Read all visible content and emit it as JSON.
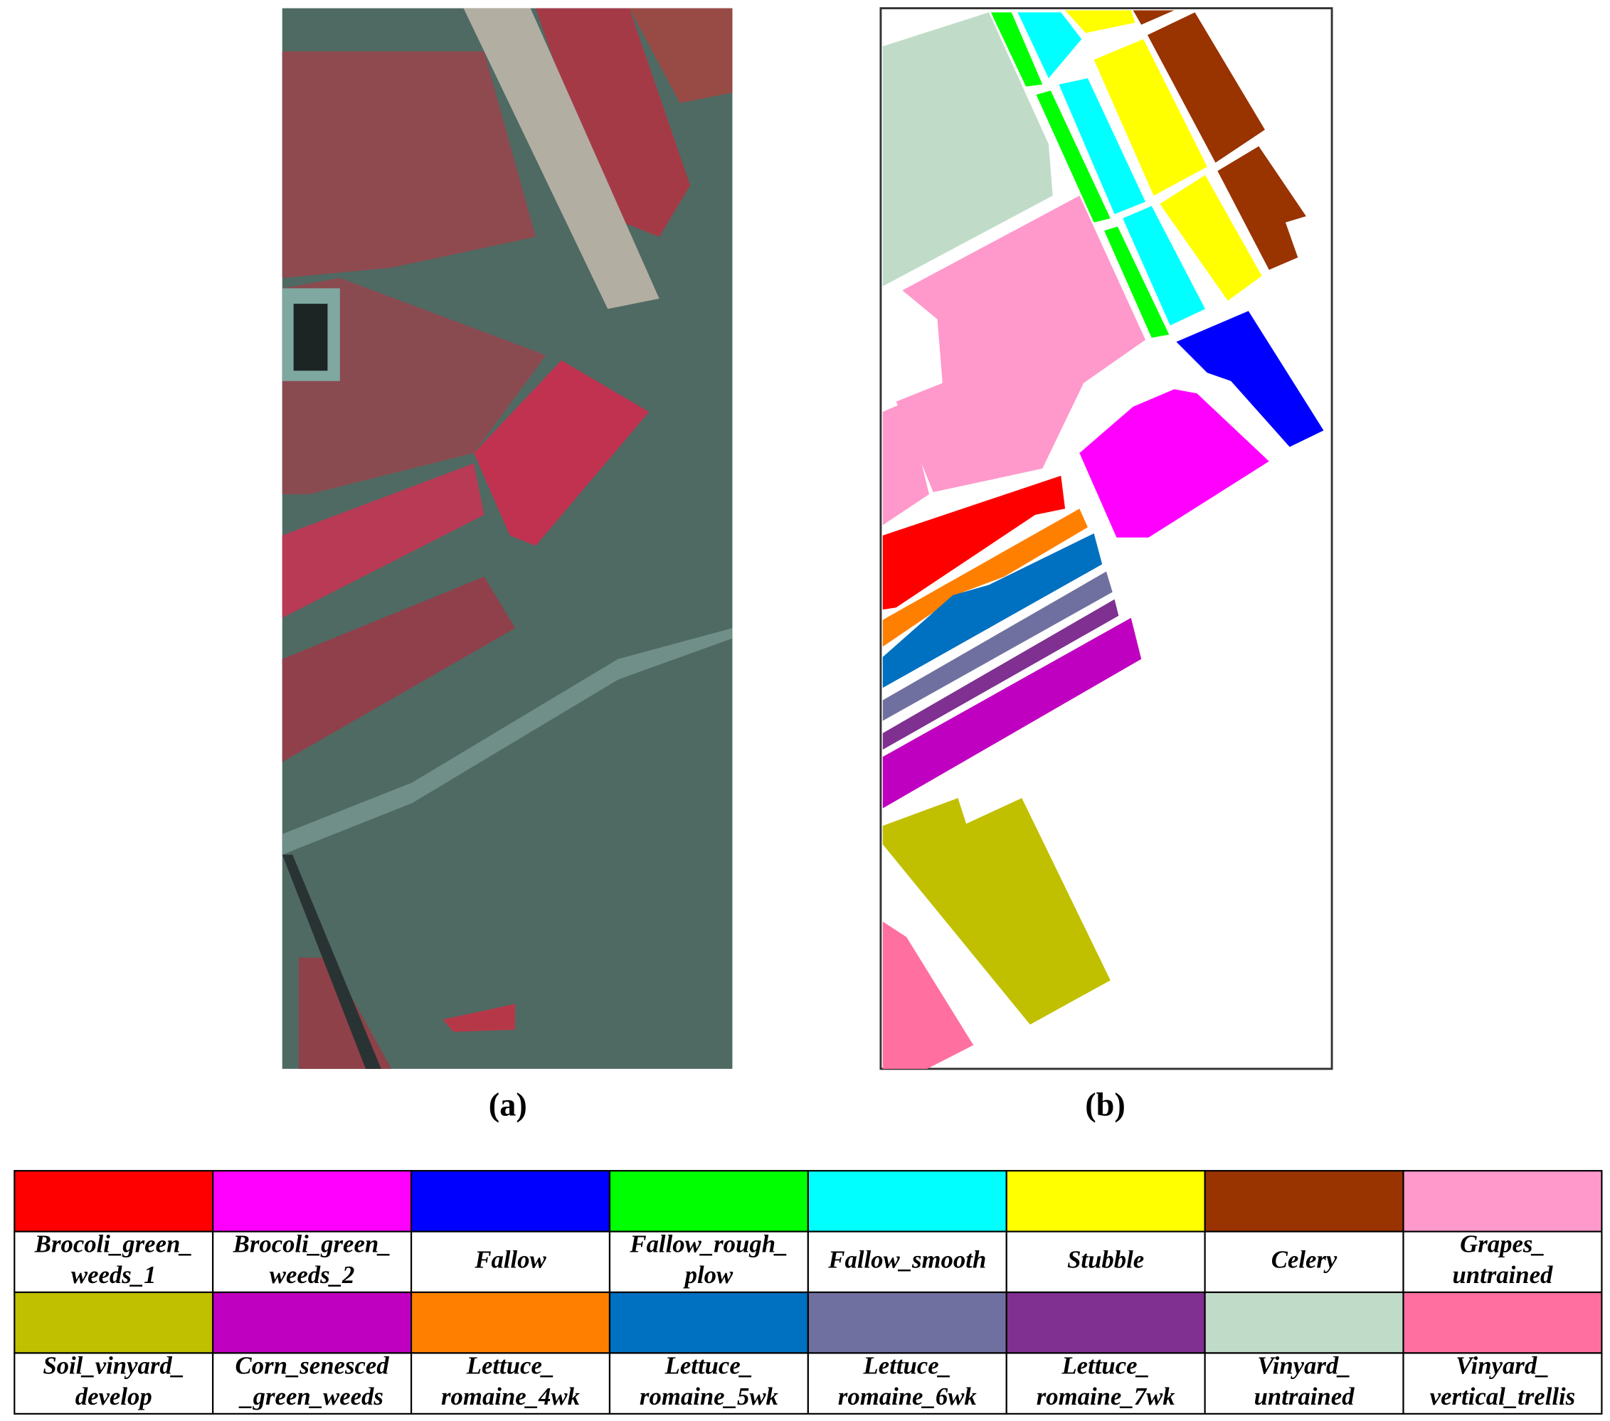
{
  "panels": {
    "a": {
      "label": "(a)"
    },
    "b": {
      "label": "(b)"
    }
  },
  "legend": {
    "items": [
      {
        "lines": [
          "Brocoli_green_",
          "weeds_1"
        ],
        "color": "#ff0000"
      },
      {
        "lines": [
          "Brocoli_green_",
          "weeds_2"
        ],
        "color": "#ff00ff"
      },
      {
        "lines": [
          "Fallow"
        ],
        "color": "#0000ff"
      },
      {
        "lines": [
          "Fallow_rough_",
          "plow"
        ],
        "color": "#00ff00"
      },
      {
        "lines": [
          "Fallow_smooth"
        ],
        "color": "#00ffff"
      },
      {
        "lines": [
          "Stubble"
        ],
        "color": "#ffff00"
      },
      {
        "lines": [
          "Celery"
        ],
        "color": "#993300"
      },
      {
        "lines": [
          "Grapes_",
          "untrained"
        ],
        "color": "#ff99cc"
      },
      {
        "lines": [
          "Soil_vinyard_",
          "develop"
        ],
        "color": "#c0c000"
      },
      {
        "lines": [
          "Corn_senesced",
          "_green_weeds"
        ],
        "color": "#c000c0"
      },
      {
        "lines": [
          "Lettuce_",
          "romaine_4wk"
        ],
        "color": "#ff8000"
      },
      {
        "lines": [
          "Lettuce_",
          "romaine_5wk"
        ],
        "color": "#0070c0"
      },
      {
        "lines": [
          "Lettuce_",
          "romaine_6wk"
        ],
        "color": "#7070a0"
      },
      {
        "lines": [
          "Lettuce_",
          "romaine_7wk"
        ],
        "color": "#7f3090"
      },
      {
        "lines": [
          "Vinyard_",
          "untrained"
        ],
        "color": "#c0dcc8"
      },
      {
        "lines": [
          "Vinyard_",
          "vertical_trellis"
        ],
        "color": "#ff70a0"
      }
    ]
  }
}
